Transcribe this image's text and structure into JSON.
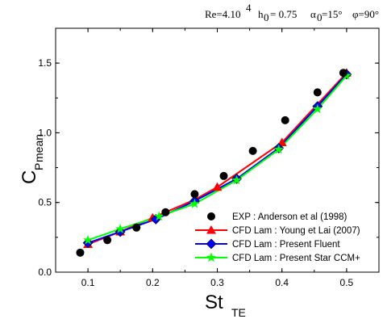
{
  "header": {
    "re": "Re=4.10",
    "re_exp": "4",
    "h_sym": "h",
    "h_sub": "0",
    "h_val": "= 0.75",
    "alpha_sym": "α",
    "alpha_sub": "0",
    "alpha_val": "=15°",
    "phi": "φ=90°"
  },
  "chart_data": {
    "type": "line",
    "xlabel_main": "St",
    "xlabel_sub": "TE",
    "ylabel_main": "C",
    "ylabel_sub": "P",
    "ylabel_sub2": "mean",
    "xlim": [
      0.05,
      0.55
    ],
    "ylim": [
      0.0,
      1.75
    ],
    "xticks": [
      0.1,
      0.2,
      0.3,
      0.4,
      0.5
    ],
    "xtick_labels": [
      "0.1",
      "0.2",
      "0.3",
      "0.4",
      "0.5"
    ],
    "yticks": [
      0.0,
      0.5,
      1.0,
      1.5
    ],
    "ytick_labels": [
      "0.0",
      "0.5",
      "1.0",
      "1.5"
    ],
    "grid": false,
    "legend_position": "bottom-right",
    "series": [
      {
        "name": "EXP :  Anderson et al (1998)",
        "style": "points",
        "marker": "circle",
        "color": "#000000",
        "x": [
          0.088,
          0.13,
          0.175,
          0.22,
          0.265,
          0.31,
          0.355,
          0.405,
          0.455,
          0.495
        ],
        "y": [
          0.14,
          0.23,
          0.32,
          0.43,
          0.56,
          0.69,
          0.87,
          1.09,
          1.29,
          1.43
        ]
      },
      {
        "name": "CFD Lam : Young et  Lai (2007)",
        "style": "line-marker",
        "marker": "triangle",
        "color": "#ff0000",
        "x": [
          0.1,
          0.15,
          0.2,
          0.265,
          0.3,
          0.4,
          0.5
        ],
        "y": [
          0.2,
          0.29,
          0.39,
          0.52,
          0.61,
          0.93,
          1.43
        ]
      },
      {
        "name": "CFD Lam : Present Fluent",
        "style": "line-marker",
        "marker": "diamond",
        "color": "#0000ff",
        "x": [
          0.1,
          0.15,
          0.205,
          0.265,
          0.33,
          0.395,
          0.455,
          0.5
        ],
        "y": [
          0.21,
          0.29,
          0.38,
          0.51,
          0.67,
          0.89,
          1.19,
          1.42
        ]
      },
      {
        "name": "CFD Lam : Present Star CCM+",
        "style": "line-marker",
        "marker": "star",
        "color": "#00ff00",
        "x": [
          0.1,
          0.15,
          0.21,
          0.265,
          0.33,
          0.395,
          0.455,
          0.5
        ],
        "y": [
          0.23,
          0.31,
          0.4,
          0.49,
          0.66,
          0.88,
          1.17,
          1.41
        ]
      }
    ]
  }
}
